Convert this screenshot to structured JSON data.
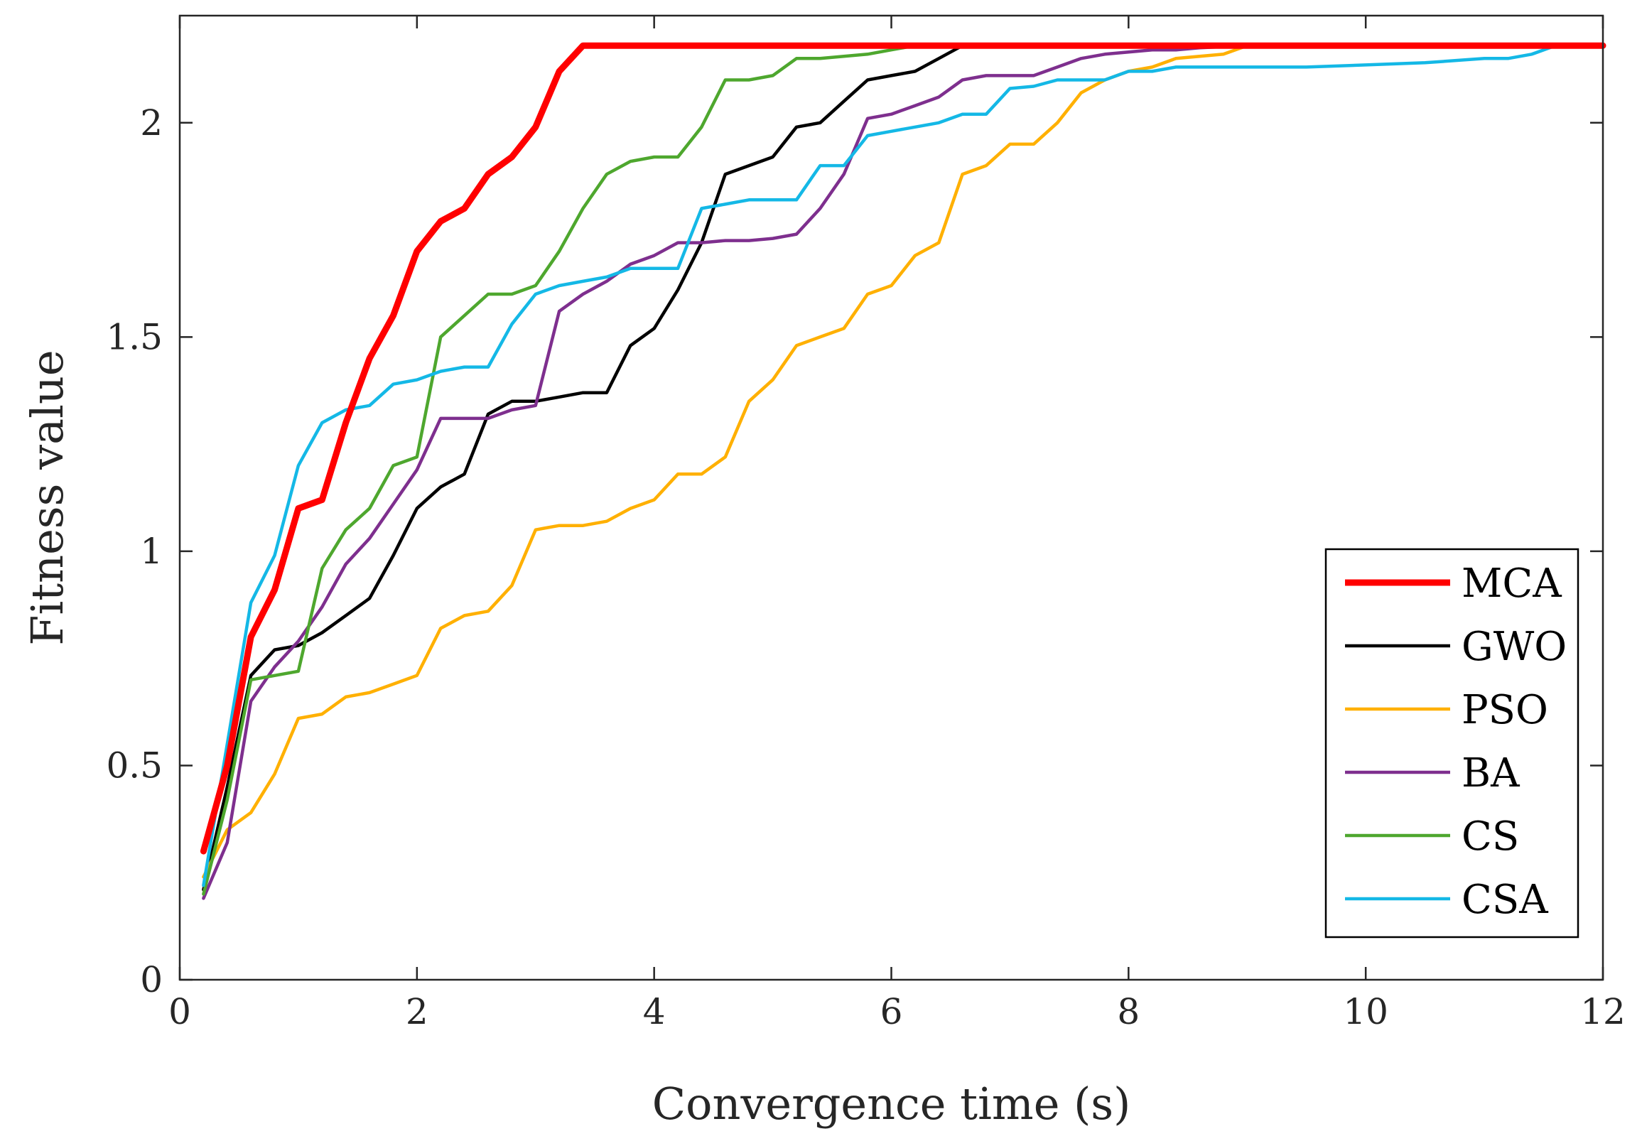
{
  "chart_data": {
    "type": "line",
    "title": "",
    "xlabel": "Convergence time (s)",
    "ylabel": "Fitness value",
    "xlim": [
      0,
      12
    ],
    "ylim": [
      0,
      2.25
    ],
    "xticks": [
      0,
      2,
      4,
      6,
      8,
      10,
      12
    ],
    "xtick_labels": [
      "0",
      "2",
      "4",
      "6",
      "8",
      "10",
      "12"
    ],
    "yticks": [
      0,
      0.5,
      1,
      1.5,
      2
    ],
    "ytick_labels": [
      "0",
      "0.5",
      "1",
      "1.5",
      "2"
    ],
    "grid": false,
    "legend_position": "bottom-right",
    "series": [
      {
        "name": "MCA",
        "color": "#ff0000",
        "thick": true,
        "x": [
          0.2,
          0.4,
          0.6,
          0.8,
          1.0,
          1.2,
          1.4,
          1.6,
          1.8,
          2.0,
          2.2,
          2.4,
          2.6,
          2.8,
          3.0,
          3.2,
          3.4,
          3.6,
          12.0
        ],
        "y": [
          0.3,
          0.5,
          0.8,
          0.91,
          1.1,
          1.12,
          1.3,
          1.45,
          1.55,
          1.7,
          1.77,
          1.8,
          1.88,
          1.92,
          1.99,
          2.12,
          2.18,
          2.18,
          2.18
        ]
      },
      {
        "name": "GWO",
        "color": "#000000",
        "thick": false,
        "x": [
          0.2,
          0.4,
          0.6,
          0.8,
          1.0,
          1.2,
          1.4,
          1.6,
          1.8,
          2.0,
          2.2,
          2.4,
          2.6,
          2.8,
          3.0,
          3.2,
          3.4,
          3.6,
          3.8,
          4.0,
          4.2,
          4.4,
          4.6,
          4.8,
          5.0,
          5.2,
          5.4,
          5.6,
          5.8,
          6.0,
          6.2,
          6.4,
          6.6,
          6.8,
          12.0
        ],
        "y": [
          0.21,
          0.45,
          0.71,
          0.77,
          0.78,
          0.81,
          0.85,
          0.89,
          0.99,
          1.1,
          1.15,
          1.18,
          1.32,
          1.35,
          1.35,
          1.36,
          1.37,
          1.37,
          1.48,
          1.52,
          1.61,
          1.72,
          1.88,
          1.9,
          1.92,
          1.99,
          2.0,
          2.05,
          2.1,
          2.11,
          2.12,
          2.15,
          2.18,
          2.18,
          2.18
        ]
      },
      {
        "name": "PSO",
        "color": "#ffb000",
        "thick": false,
        "x": [
          0.2,
          0.4,
          0.6,
          0.8,
          1.0,
          1.2,
          1.4,
          1.6,
          1.8,
          2.0,
          2.2,
          2.4,
          2.6,
          2.8,
          3.0,
          3.2,
          3.4,
          3.6,
          3.8,
          4.0,
          4.2,
          4.4,
          4.6,
          4.8,
          5.0,
          5.2,
          5.4,
          5.6,
          5.8,
          6.0,
          6.2,
          6.4,
          6.6,
          6.8,
          7.0,
          7.2,
          7.4,
          7.6,
          7.8,
          8.0,
          8.2,
          8.4,
          8.6,
          8.8,
          9.0,
          12.0
        ],
        "y": [
          0.24,
          0.35,
          0.39,
          0.48,
          0.61,
          0.62,
          0.66,
          0.67,
          0.69,
          0.71,
          0.82,
          0.85,
          0.86,
          0.92,
          1.05,
          1.06,
          1.06,
          1.07,
          1.1,
          1.12,
          1.18,
          1.18,
          1.22,
          1.35,
          1.4,
          1.48,
          1.5,
          1.52,
          1.6,
          1.62,
          1.69,
          1.72,
          1.88,
          1.9,
          1.95,
          1.95,
          2.0,
          2.07,
          2.1,
          2.12,
          2.13,
          2.15,
          2.155,
          2.16,
          2.18,
          2.18
        ]
      },
      {
        "name": "BA",
        "color": "#7e2f8e",
        "thick": false,
        "x": [
          0.2,
          0.4,
          0.6,
          0.8,
          1.0,
          1.2,
          1.4,
          1.6,
          1.8,
          2.0,
          2.2,
          2.4,
          2.6,
          2.8,
          3.0,
          3.2,
          3.4,
          3.6,
          3.8,
          4.0,
          4.2,
          4.4,
          4.6,
          4.8,
          5.0,
          5.2,
          5.4,
          5.6,
          5.8,
          6.0,
          6.2,
          6.4,
          6.6,
          6.8,
          7.0,
          7.2,
          7.4,
          7.6,
          7.8,
          8.0,
          8.2,
          8.4,
          8.6,
          9.0,
          12.0
        ],
        "y": [
          0.19,
          0.32,
          0.65,
          0.73,
          0.79,
          0.87,
          0.97,
          1.03,
          1.11,
          1.19,
          1.31,
          1.31,
          1.31,
          1.33,
          1.34,
          1.56,
          1.6,
          1.63,
          1.67,
          1.69,
          1.72,
          1.72,
          1.725,
          1.725,
          1.73,
          1.74,
          1.8,
          1.88,
          2.01,
          2.02,
          2.04,
          2.06,
          2.1,
          2.11,
          2.11,
          2.11,
          2.13,
          2.15,
          2.16,
          2.165,
          2.17,
          2.17,
          2.175,
          2.18,
          2.18
        ]
      },
      {
        "name": "CS",
        "color": "#4ea72e",
        "thick": false,
        "x": [
          0.2,
          0.4,
          0.6,
          0.8,
          1.0,
          1.2,
          1.4,
          1.6,
          1.8,
          2.0,
          2.2,
          2.4,
          2.6,
          2.8,
          3.0,
          3.2,
          3.4,
          3.6,
          3.8,
          4.0,
          4.2,
          4.4,
          4.6,
          4.8,
          5.0,
          5.2,
          5.4,
          5.6,
          5.8,
          6.0,
          6.2,
          6.4,
          12.0
        ],
        "y": [
          0.2,
          0.42,
          0.7,
          0.71,
          0.72,
          0.96,
          1.05,
          1.1,
          1.2,
          1.22,
          1.5,
          1.55,
          1.6,
          1.6,
          1.62,
          1.7,
          1.8,
          1.88,
          1.91,
          1.92,
          1.92,
          1.99,
          2.1,
          2.1,
          2.11,
          2.15,
          2.15,
          2.155,
          2.16,
          2.17,
          2.18,
          2.18,
          2.18
        ]
      },
      {
        "name": "CSA",
        "color": "#14b8e6",
        "thick": false,
        "x": [
          0.2,
          0.4,
          0.6,
          0.8,
          1.0,
          1.2,
          1.4,
          1.6,
          1.8,
          2.0,
          2.2,
          2.4,
          2.6,
          2.8,
          3.0,
          3.2,
          3.4,
          3.6,
          3.8,
          4.0,
          4.2,
          4.4,
          4.6,
          4.8,
          5.0,
          5.2,
          5.4,
          5.6,
          5.8,
          6.0,
          6.2,
          6.4,
          6.6,
          6.8,
          7.0,
          7.2,
          7.4,
          7.6,
          7.8,
          8.0,
          8.2,
          8.4,
          9.0,
          9.5,
          10.0,
          10.5,
          11.0,
          11.2,
          11.4,
          11.6,
          12.0
        ],
        "y": [
          0.22,
          0.55,
          0.88,
          0.99,
          1.2,
          1.3,
          1.33,
          1.34,
          1.39,
          1.4,
          1.42,
          1.43,
          1.43,
          1.53,
          1.6,
          1.62,
          1.63,
          1.64,
          1.66,
          1.66,
          1.66,
          1.8,
          1.81,
          1.82,
          1.82,
          1.82,
          1.9,
          1.9,
          1.97,
          1.98,
          1.99,
          2.0,
          2.02,
          2.02,
          2.08,
          2.085,
          2.1,
          2.1,
          2.1,
          2.12,
          2.12,
          2.13,
          2.13,
          2.13,
          2.135,
          2.14,
          2.15,
          2.15,
          2.16,
          2.18,
          2.18
        ]
      }
    ]
  }
}
